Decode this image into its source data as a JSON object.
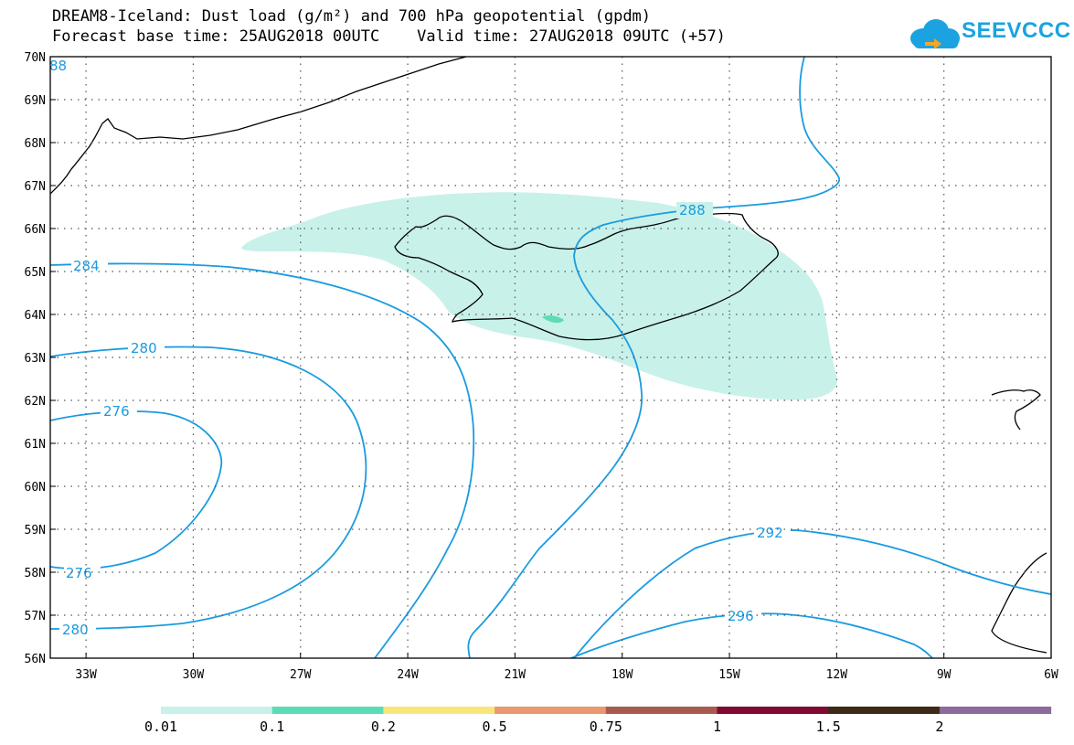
{
  "title_line1": "DREAM8-Iceland: Dust load (g/m²) and 700 hPa geopotential (gpdm)",
  "title_line2": "Forecast base time: 25AUG2018 00UTC    Valid time: 27AUG2018 09UTC (+57)",
  "logo_text": "SEEVCCC",
  "map": {
    "lon_range": [
      -34,
      -6
    ],
    "lat_range": [
      56,
      70
    ],
    "lat_ticks": [
      "70N",
      "69N",
      "68N",
      "67N",
      "66N",
      "65N",
      "64N",
      "63N",
      "62N",
      "61N",
      "60N",
      "59N",
      "58N",
      "57N",
      "56N"
    ],
    "lon_ticks": [
      "33W",
      "30W",
      "27W",
      "24W",
      "21W",
      "18W",
      "15W",
      "12W",
      "9W",
      "6W"
    ],
    "contour_color": "#1a9be0",
    "contour_labels": [
      "88",
      "288",
      "284",
      "280",
      "276",
      "276",
      "280",
      "292",
      "296"
    ]
  },
  "colorbar": {
    "colors": [
      "#c8f1ea",
      "#5bdcb4",
      "#f8e67a",
      "#e9986f",
      "#a95a4e",
      "#7f0a32",
      "#3c2a14",
      "#8c6a9b"
    ],
    "labels": [
      "0.01",
      "0.1",
      "0.2",
      "0.5",
      "0.75",
      "1",
      "1.5",
      "2"
    ]
  }
}
